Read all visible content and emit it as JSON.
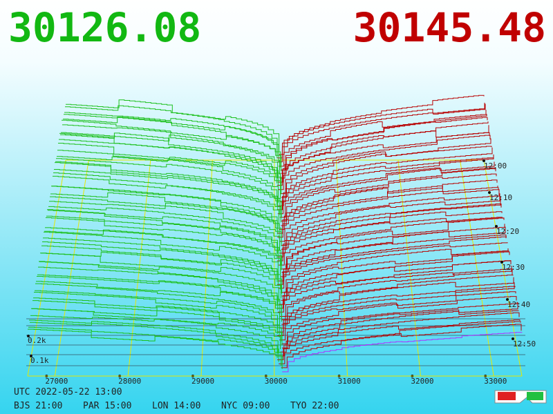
{
  "header": {
    "bid_price": "30126.08",
    "ask_price": "30145.48"
  },
  "price_axis": [
    "27000",
    "28000",
    "29000",
    "30000",
    "31000",
    "32000",
    "33000"
  ],
  "time_axis": [
    "12:00",
    "12:10",
    "12:20",
    "12:30",
    "12:40",
    "12:50"
  ],
  "depth_axis": [
    "0.2k",
    "0.1k"
  ],
  "footer": {
    "utc": "UTC 2022-05-22 13:00",
    "zones": [
      "BJS 21:00",
      "PAR 15:00",
      "LON 14:00",
      "NYC 09:00",
      "TYO 22:00"
    ]
  }
}
